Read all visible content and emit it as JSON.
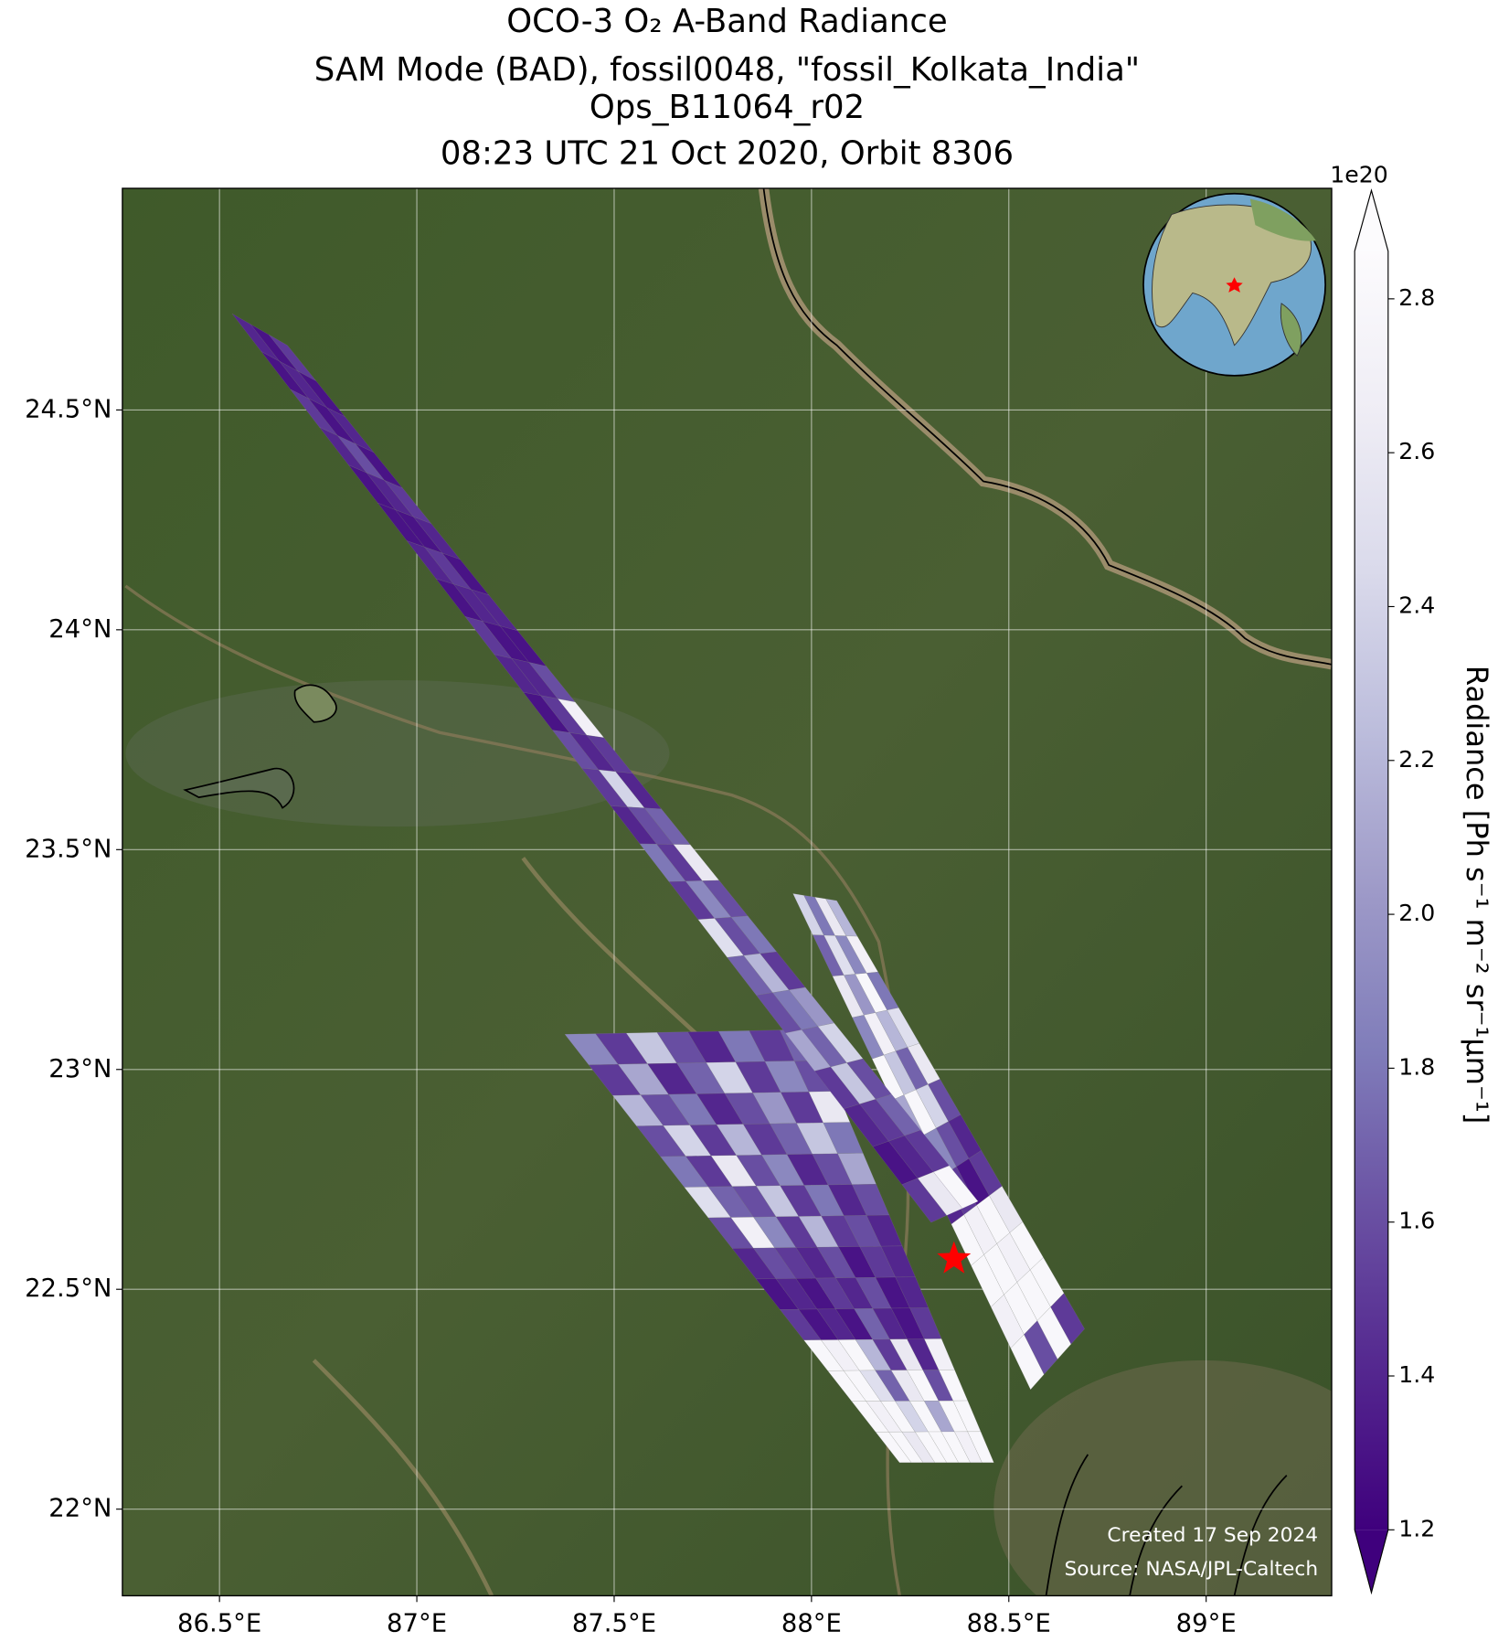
{
  "chart_data": {
    "type": "map",
    "title": [
      "OCO-3 O₂ A-Band Radiance",
      "SAM Mode (BAD), fossil0048, \"fossil_Kolkata_India\"",
      "Ops_B11064_r02",
      "08:23 UTC 21 Oct 2020, Orbit 8306"
    ],
    "xlim": [
      86.254,
      89.318
    ],
    "ylim": [
      21.803,
      25.004
    ],
    "xticks": [
      {
        "value": 86.5,
        "label": "86.5°E"
      },
      {
        "value": 87,
        "label": "87°E"
      },
      {
        "value": 87.5,
        "label": "87.5°E"
      },
      {
        "value": 88,
        "label": "88°E"
      },
      {
        "value": 88.5,
        "label": "88.5°E"
      },
      {
        "value": 89,
        "label": "89°E"
      }
    ],
    "yticks": [
      {
        "value": 22,
        "label": "22°N"
      },
      {
        "value": 22.5,
        "label": "22.5°N"
      },
      {
        "value": 23,
        "label": "23°N"
      },
      {
        "value": 23.5,
        "label": "23.5°N"
      },
      {
        "value": 24,
        "label": "24°N"
      },
      {
        "value": 24.5,
        "label": "24.5°N"
      }
    ],
    "grid": true,
    "colorbar": {
      "label": "Radiance [Ph s⁻¹ m⁻² sr⁻¹μm⁻¹]",
      "offset_text": "1e20",
      "clim": [
        1.2,
        2.862
      ],
      "ticks": [
        1.2,
        1.4,
        1.6,
        1.8,
        {
          "value": 2.0,
          "label": "2.0"
        },
        2.2,
        2.4,
        2.6,
        2.8
      ],
      "colormap": [
        "#3f007d",
        "#54278f",
        "#6a51a3",
        "#807dba",
        "#9e9ac8",
        "#bcbddc",
        "#dadaeb",
        "#efedf5",
        "#fcfbfd"
      ],
      "extend": "both"
    },
    "swaths": [
      {
        "corners": [
          [
            87.375,
            23.08
          ],
          [
            87.998,
            23.091
          ],
          [
            88.462,
            22.106
          ],
          [
            88.223,
            22.106
          ]
        ],
        "values": [
          [
            1.9,
            1.5,
            2.3,
            1.6,
            1.4,
            1.8,
            1.5,
            1.7
          ],
          [
            1.5,
            2.1,
            1.4,
            1.7,
            2.4,
            1.5,
            1.9,
            1.6
          ],
          [
            2.2,
            1.6,
            1.8,
            1.4,
            1.6,
            2.0,
            1.5,
            2.6
          ],
          [
            1.6,
            2.4,
            1.5,
            2.2,
            1.5,
            1.7,
            2.3,
            1.8
          ],
          [
            1.8,
            1.5,
            2.6,
            1.6,
            1.9,
            1.4,
            1.6,
            2.1
          ],
          [
            2.5,
            1.7,
            1.6,
            2.3,
            1.5,
            1.8,
            1.4,
            1.6
          ],
          [
            1.6,
            2.7,
            1.9,
            1.5,
            2.2,
            1.5,
            1.6,
            1.4
          ],
          [
            1.4,
            1.6,
            1.5,
            1.4,
            1.6,
            1.3,
            1.5,
            1.4
          ],
          [
            1.3,
            1.4,
            1.3,
            1.5,
            1.4,
            1.6,
            1.3,
            1.4
          ],
          [
            1.5,
            1.3,
            1.4,
            1.3,
            1.7,
            1.4,
            1.3,
            1.5
          ],
          [
            2.8,
            2.7,
            2.8,
            2.2,
            1.5,
            2.6,
            1.4,
            2.7
          ],
          [
            2.8,
            2.8,
            2.5,
            1.7,
            2.6,
            2.8,
            1.6,
            2.8
          ],
          [
            2.8,
            2.7,
            2.8,
            2.4,
            2.8,
            2.1,
            2.8,
            2.8
          ],
          [
            2.8,
            2.8,
            2.6,
            2.8,
            2.8,
            2.8,
            2.7,
            2.8
          ]
        ]
      },
      {
        "corners": [
          [
            87.953,
            23.4
          ],
          [
            88.064,
            23.384
          ],
          [
            88.692,
            22.41
          ],
          [
            88.555,
            22.272
          ]
        ],
        "values": [
          [
            2.4,
            1.8,
            2.6,
            2.2
          ],
          [
            1.7,
            2.5,
            1.9,
            2.7
          ],
          [
            2.6,
            2.0,
            2.8,
            1.8
          ],
          [
            1.9,
            2.7,
            2.2,
            2.5
          ],
          [
            2.8,
            2.3,
            1.7,
            2.6
          ],
          [
            2.1,
            2.8,
            2.4,
            1.6
          ],
          [
            1.5,
            1.9,
            1.6,
            1.4
          ],
          [
            1.4,
            1.5,
            1.3,
            1.5
          ],
          [
            2.8,
            2.7,
            2.8,
            2.6
          ],
          [
            2.8,
            2.8,
            2.7,
            2.8
          ],
          [
            2.7,
            2.8,
            2.8,
            2.8
          ],
          [
            2.8,
            1.6,
            2.8,
            1.5
          ]
        ]
      },
      {
        "corners": [
          [
            86.532,
            24.719
          ],
          [
            86.672,
            24.647
          ],
          [
            88.422,
            22.7
          ],
          [
            88.303,
            22.652
          ]
        ],
        "values": [
          [
            1.4,
            1.3,
            1.5
          ],
          [
            1.3,
            1.4,
            1.3
          ],
          [
            1.5,
            1.3,
            1.4
          ],
          [
            1.4,
            1.6,
            1.3
          ],
          [
            1.3,
            1.4,
            1.5
          ],
          [
            1.3,
            1.3,
            1.4
          ],
          [
            1.4,
            1.5,
            1.3
          ],
          [
            1.3,
            1.4,
            1.4
          ],
          [
            1.5,
            1.3,
            1.3
          ],
          [
            1.4,
            1.4,
            1.6
          ],
          [
            1.3,
            1.5,
            2.7
          ],
          [
            1.6,
            1.4,
            1.5
          ],
          [
            1.5,
            2.4,
            1.4
          ],
          [
            1.4,
            1.6,
            1.7
          ],
          [
            1.8,
            1.5,
            2.6
          ],
          [
            1.5,
            1.9,
            1.6
          ],
          [
            2.5,
            1.6,
            1.8
          ],
          [
            1.7,
            2.2,
            1.5
          ],
          [
            1.6,
            1.8,
            2.0
          ],
          [
            2.1,
            1.7,
            2.4
          ],
          [
            1.5,
            2.3,
            1.6
          ],
          [
            1.4,
            1.5,
            1.7
          ],
          [
            1.3,
            1.4,
            1.5
          ],
          [
            1.5,
            2.6,
            2.8
          ]
        ]
      }
    ],
    "site": {
      "lon": 88.361,
      "lat": 22.569,
      "color": "#ff0000"
    },
    "annotations": [
      "Created 17 Sep 2024",
      "Source: NASA/JPL-Caltech"
    ]
  }
}
